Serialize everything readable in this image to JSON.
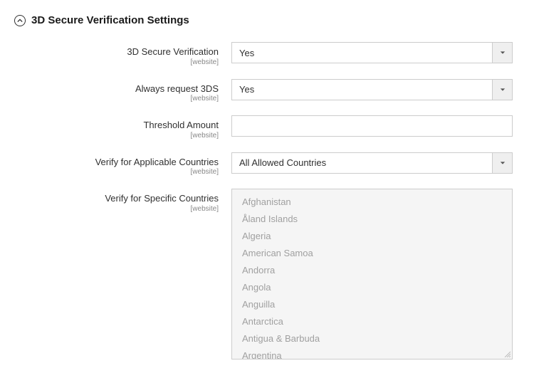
{
  "section": {
    "title": "3D Secure Verification Settings"
  },
  "fields": {
    "verify3d": {
      "label": "3D Secure Verification",
      "scope": "[website]",
      "value": "Yes"
    },
    "always3ds": {
      "label": "Always request 3DS",
      "scope": "[website]",
      "value": "Yes"
    },
    "threshold": {
      "label": "Threshold Amount",
      "scope": "[website]",
      "value": ""
    },
    "applicable": {
      "label": "Verify for Applicable Countries",
      "scope": "[website]",
      "value": "All Allowed Countries"
    },
    "specific": {
      "label": "Verify for Specific Countries",
      "scope": "[website]",
      "options": [
        "Afghanistan",
        "Åland Islands",
        "Algeria",
        "American Samoa",
        "Andorra",
        "Angola",
        "Anguilla",
        "Antarctica",
        "Antigua & Barbuda",
        "Argentina"
      ]
    }
  },
  "style": {
    "background": "#ffffff",
    "border_color": "#cccccc",
    "disabled_bg": "#f5f5f5",
    "caret_bg": "#efefef",
    "text_color": "#303030",
    "muted_text": "#a0a0a0",
    "scope_text": "#888888",
    "label_fontsize": 13,
    "scope_fontsize": 10,
    "title_fontsize": 15,
    "control_height": 30,
    "multiselect_height": 240
  }
}
